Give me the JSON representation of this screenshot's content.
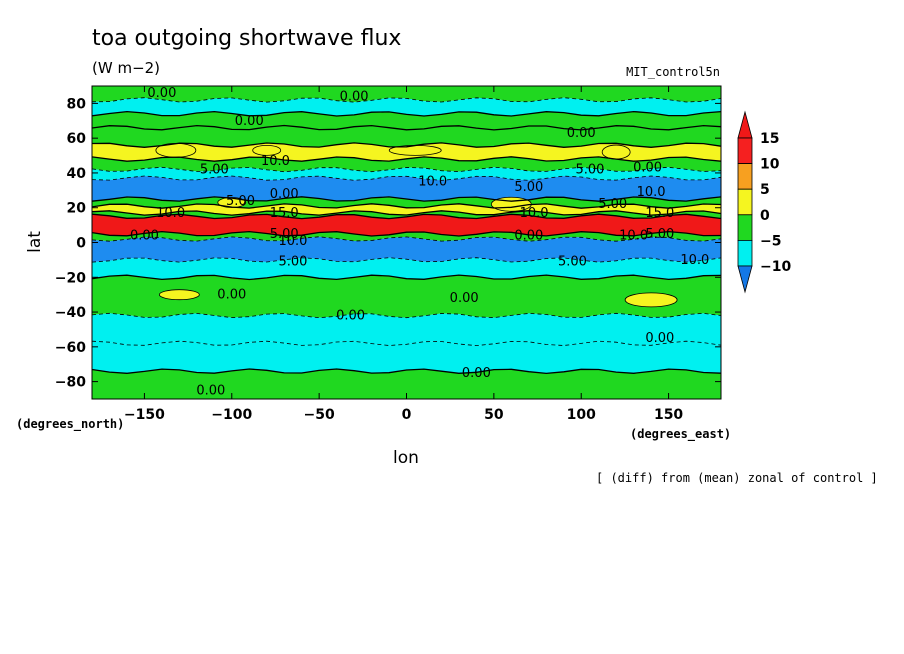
{
  "chart_data": {
    "type": "heatmap",
    "title": "toa outgoing shortwave flux",
    "units": "(W m−2)",
    "dataset": "MIT_control5n",
    "xlabel": "lon",
    "ylabel": "lat",
    "x_unit": "(degrees_east)",
    "y_unit": "(degrees_north)",
    "note": "[ (diff) from (mean) zonal of control ]",
    "xlim": [
      -180,
      180
    ],
    "ylim": [
      -90,
      90
    ],
    "x_ticks": [
      -150,
      -100,
      -50,
      0,
      50,
      100,
      150
    ],
    "y_ticks": [
      80,
      60,
      40,
      20,
      0,
      -20,
      -40,
      -60,
      -80
    ],
    "colorbar": {
      "levels": [
        15,
        10,
        5,
        0,
        -5,
        -10
      ],
      "labels": [
        "15",
        "10",
        "5",
        "0",
        "-5",
        "-10"
      ],
      "colors": [
        "#f52020",
        "#f7a020",
        "#f5f520",
        "#20d820",
        "#00f0f0",
        "#1e8cf0"
      ],
      "extend_colors": {
        "above": "#f01818",
        "below": "#1478e6"
      }
    },
    "bands": [
      {
        "lat": [
          82,
          90
        ],
        "value": 0
      },
      {
        "lat": [
          74,
          82
        ],
        "value": -2
      },
      {
        "lat": [
          66,
          74
        ],
        "value": 0
      },
      {
        "lat": [
          56,
          66
        ],
        "value": 2
      },
      {
        "lat": [
          48,
          56
        ],
        "value": 6
      },
      {
        "lat": [
          42,
          48
        ],
        "value": 2
      },
      {
        "lat": [
          37,
          42
        ],
        "value": -3
      },
      {
        "lat": [
          25,
          37
        ],
        "value": -7
      },
      {
        "lat": [
          21,
          25
        ],
        "value": 1
      },
      {
        "lat": [
          17,
          21
        ],
        "value": 7
      },
      {
        "lat": [
          15,
          17
        ],
        "value": 2
      },
      {
        "lat": [
          5,
          15
        ],
        "value": 17
      },
      {
        "lat": [
          2,
          5
        ],
        "value": 1
      },
      {
        "lat": [
          -10,
          2
        ],
        "value": -8
      },
      {
        "lat": [
          -20,
          -10
        ],
        "value": -3
      },
      {
        "lat": [
          -42,
          -20
        ],
        "value": 1
      },
      {
        "lat": [
          -58,
          -42
        ],
        "value": -2
      },
      {
        "lat": [
          -74,
          -58
        ],
        "value": -3
      },
      {
        "lat": [
          -90,
          -74
        ],
        "value": 1
      }
    ],
    "patches": [
      {
        "lon": -80,
        "lat": 53,
        "value": 7
      },
      {
        "lon": -132,
        "lat": 53,
        "value": 8
      },
      {
        "lon": 5,
        "lat": 53,
        "value": 6
      },
      {
        "lon": 120,
        "lat": 52,
        "value": 7
      },
      {
        "lon": -130,
        "lat": -30,
        "value": 8
      },
      {
        "lon": 140,
        "lat": -33,
        "value": 7
      },
      {
        "lon": -100,
        "lat": 23,
        "value": 7
      },
      {
        "lon": 60,
        "lat": 22,
        "value": 6
      }
    ],
    "contour_labels": [
      {
        "text": "0.00",
        "lon": -140,
        "lat": 86
      },
      {
        "text": "0.00",
        "lon": -90,
        "lat": 70
      },
      {
        "text": "0.00",
        "lon": -30,
        "lat": 84
      },
      {
        "text": "0.00",
        "lon": 100,
        "lat": 63
      },
      {
        "text": "0.00",
        "lon": 138,
        "lat": 43
      },
      {
        "text": "10.0",
        "lon": -75,
        "lat": 47
      },
      {
        "text": "5.00",
        "lon": -110,
        "lat": 42
      },
      {
        "text": "10.0",
        "lon": 15,
        "lat": 35
      },
      {
        "text": "5.00",
        "lon": 70,
        "lat": 32
      },
      {
        "text": "5.00",
        "lon": 105,
        "lat": 42
      },
      {
        "text": "10.0",
        "lon": 140,
        "lat": 29
      },
      {
        "text": "0.00",
        "lon": -70,
        "lat": 28
      },
      {
        "text": "5.00",
        "lon": -95,
        "lat": 24
      },
      {
        "text": "5.00",
        "lon": 118,
        "lat": 22
      },
      {
        "text": "10.0",
        "lon": -135,
        "lat": 17
      },
      {
        "text": "15.0",
        "lon": -70,
        "lat": 17
      },
      {
        "text": "10.0",
        "lon": 73,
        "lat": 17
      },
      {
        "text": "15.0",
        "lon": 145,
        "lat": 17
      },
      {
        "text": "0.00",
        "lon": -150,
        "lat": 4
      },
      {
        "text": "5.00",
        "lon": -70,
        "lat": 5
      },
      {
        "text": "10.0",
        "lon": -65,
        "lat": 1
      },
      {
        "text": "0.00",
        "lon": 70,
        "lat": 4
      },
      {
        "text": "10.0",
        "lon": 130,
        "lat": 4
      },
      {
        "text": "5.00",
        "lon": 145,
        "lat": 5
      },
      {
        "text": "5.00",
        "lon": 95,
        "lat": -11
      },
      {
        "text": "10.0",
        "lon": 165,
        "lat": -10
      },
      {
        "text": "5.00",
        "lon": -65,
        "lat": -11
      },
      {
        "text": "0.00",
        "lon": -100,
        "lat": -30
      },
      {
        "text": "0.00",
        "lon": 33,
        "lat": -32
      },
      {
        "text": "0.00",
        "lon": -32,
        "lat": -42
      },
      {
        "text": "0.00",
        "lon": 145,
        "lat": -55
      },
      {
        "text": "0.00",
        "lon": 40,
        "lat": -75
      },
      {
        "text": "0.00",
        "lon": -112,
        "lat": -85
      }
    ]
  }
}
